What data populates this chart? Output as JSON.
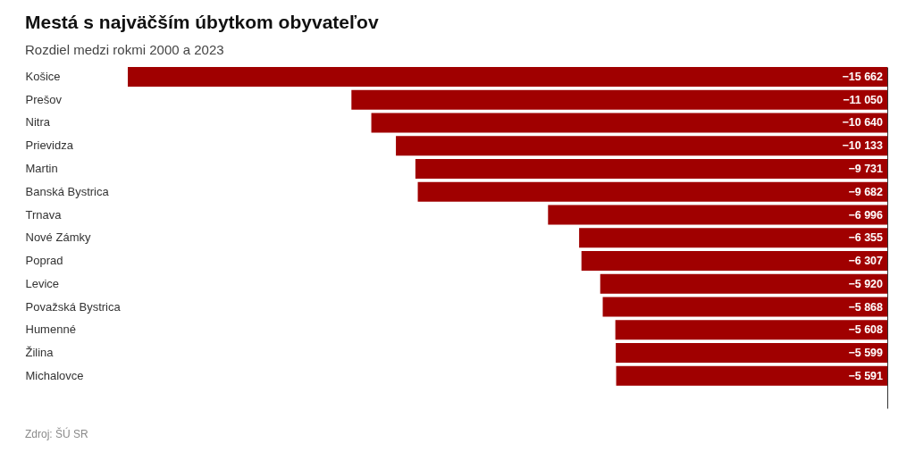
{
  "chart_data": {
    "type": "bar",
    "orientation": "horizontal",
    "title": "Mestá s najväčším úbytkom obyvateľov",
    "subtitle": "Rozdiel medzi rokmi 2000 a 2023",
    "categories": [
      "Košice",
      "Prešov",
      "Nitra",
      "Prievidza",
      "Martin",
      "Banská Bystrica",
      "Trnava",
      "Nové Zámky",
      "Poprad",
      "Levice",
      "Považská Bystrica",
      "Humenné",
      "Žilina",
      "Michalovce"
    ],
    "values": [
      -15662,
      -11050,
      -10640,
      -10133,
      -9731,
      -9682,
      -6996,
      -6355,
      -6307,
      -5920,
      -5868,
      -5608,
      -5599,
      -5591
    ],
    "value_labels": [
      "−15 662",
      "−11 050",
      "−10 640",
      "−10 133",
      "−9 731",
      "−9 682",
      "−6 996",
      "−6 355",
      "−6 307",
      "−5 920",
      "−5 868",
      "−5 608",
      "−5 599",
      "−5 591"
    ],
    "color": "#a00000",
    "tick_labels": "y",
    "annotations": [
      "Zdroj: ŠÚ SR"
    ]
  }
}
